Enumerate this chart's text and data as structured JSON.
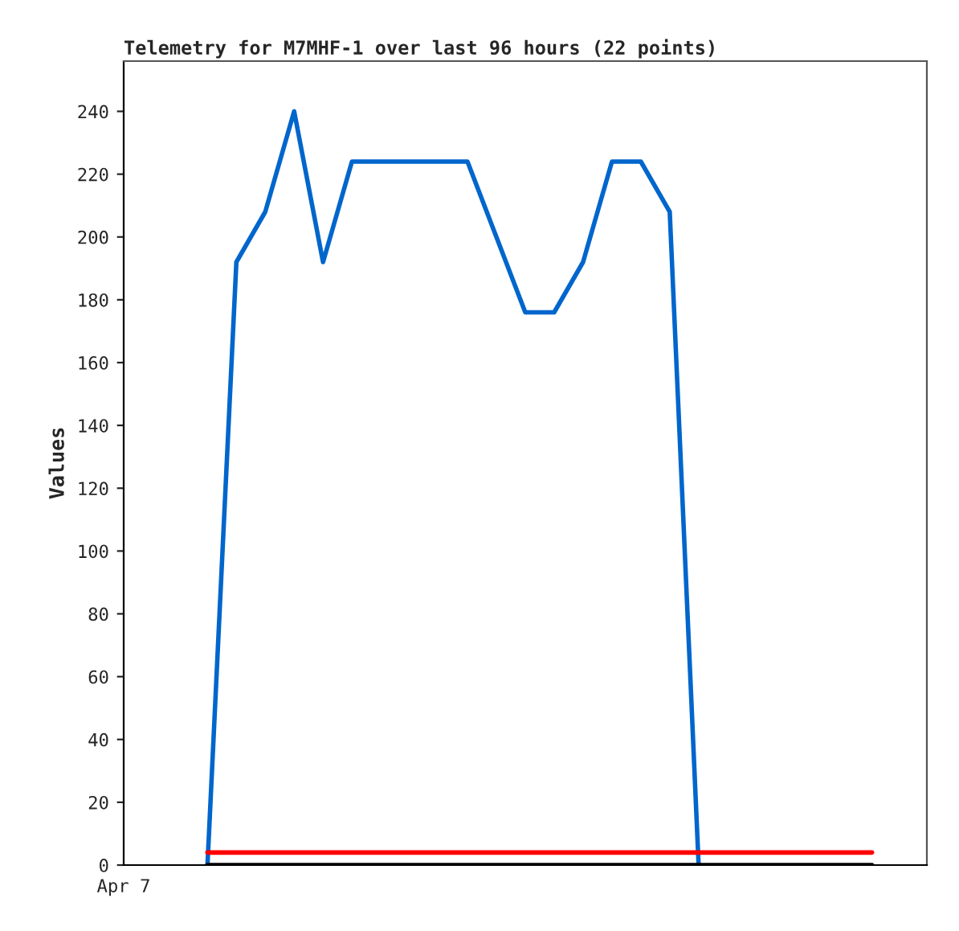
{
  "chart_data": {
    "type": "line",
    "title": "Telemetry for M7MHF-1 over last 96 hours (22 points)",
    "ylabel": "Values",
    "categories": [
      null,
      null,
      null,
      null,
      null,
      null,
      null,
      null,
      null,
      null,
      null,
      null,
      null,
      null,
      null,
      null,
      null,
      null,
      null,
      null,
      null,
      null,
      null,
      null
    ],
    "ylim": [
      0,
      256
    ],
    "yticks": [
      0,
      20,
      40,
      60,
      80,
      100,
      120,
      140,
      160,
      180,
      200,
      220,
      240
    ],
    "tick_labels": "y",
    "annotations": [
      "Apr 7"
    ],
    "grid": false,
    "legend": false,
    "series": [
      {
        "color": "#0066cc",
        "values": [
          0,
          192,
          208,
          240,
          192,
          224,
          224,
          224,
          224,
          224,
          200,
          176,
          176,
          192,
          224,
          224,
          208,
          0,
          null,
          null,
          null,
          null,
          null,
          null
        ]
      },
      {
        "color": "#ff0000",
        "values": [
          4,
          4,
          4,
          4,
          4,
          4,
          4,
          4,
          4,
          4,
          4,
          4,
          4,
          4,
          4,
          4,
          4,
          4,
          4,
          4,
          4,
          4,
          4,
          4
        ]
      },
      {
        "color": "#000000",
        "values": [
          0,
          0,
          0,
          0,
          0,
          0,
          0,
          0,
          0,
          0,
          0,
          0,
          0,
          0,
          0,
          0,
          0,
          0,
          0,
          0,
          0,
          0,
          0,
          0
        ]
      }
    ]
  }
}
